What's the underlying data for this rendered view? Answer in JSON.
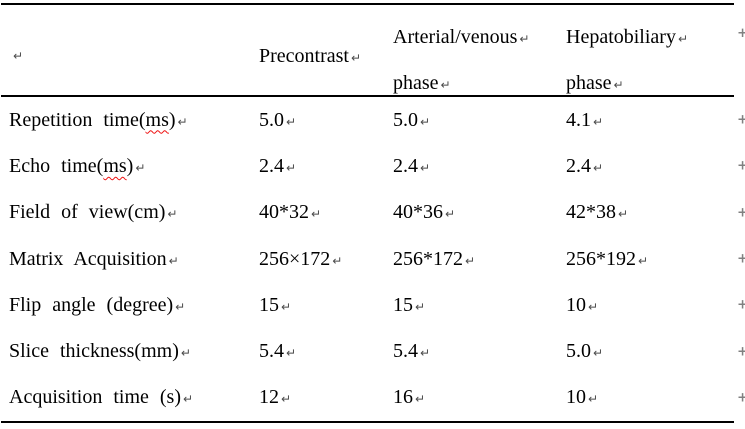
{
  "marks": {
    "paragraph": "↵",
    "row_end": "+"
  },
  "header": {
    "col2": "Precontrast",
    "col3_line1": "Arterial/venous",
    "col3_line2": "phase",
    "col4_line1": "Hepatobiliary",
    "col4_line2": "phase"
  },
  "rows": [
    {
      "label_pre": "Repetition time(",
      "misspelled": "ms",
      "label_post": ")",
      "values": [
        "5.0",
        "5.0",
        "4.1"
      ]
    },
    {
      "label_pre": "Echo time(",
      "misspelled": "ms",
      "label_post": ")",
      "values": [
        "2.4",
        "2.4",
        "2.4"
      ]
    },
    {
      "label": "Field of view(cm)",
      "values": [
        "40*32",
        "40*36",
        "42*38"
      ]
    },
    {
      "label": "Matrix Acquisition",
      "values": [
        "256×172",
        "256*172",
        "256*192"
      ]
    },
    {
      "label": "Flip angle (degree)",
      "values": [
        "15",
        "15",
        "10"
      ]
    },
    {
      "label": "Slice thickness(mm)",
      "values": [
        "5.4",
        "5.4",
        "5.0"
      ]
    },
    {
      "label": "Acquisition time (s)",
      "values": [
        "12",
        "16",
        "10"
      ]
    }
  ]
}
